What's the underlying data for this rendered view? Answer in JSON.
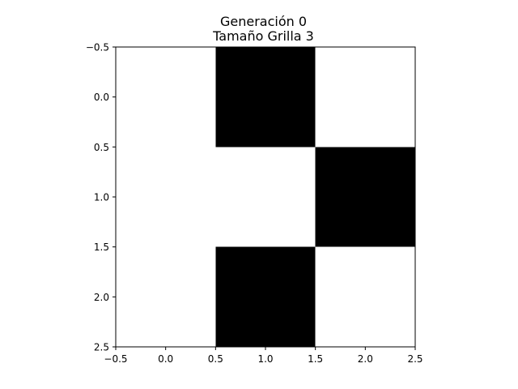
{
  "chart_data": {
    "type": "heatmap",
    "title": "Generación 0",
    "subtitle": "Tamaño Grilla 3",
    "xlabel": "",
    "ylabel": "",
    "xlim": [
      -0.5,
      2.5
    ],
    "ylim": [
      2.5,
      -0.5
    ],
    "y_inverted": true,
    "grid": false,
    "xticks": [
      {
        "value": -0.5,
        "label": "−0.5"
      },
      {
        "value": 0.0,
        "label": "0.0"
      },
      {
        "value": 0.5,
        "label": "0.5"
      },
      {
        "value": 1.0,
        "label": "1.0"
      },
      {
        "value": 1.5,
        "label": "1.5"
      },
      {
        "value": 2.0,
        "label": "2.0"
      },
      {
        "value": 2.5,
        "label": "2.5"
      }
    ],
    "yticks": [
      {
        "value": -0.5,
        "label": "−0.5"
      },
      {
        "value": 0.0,
        "label": "0.0"
      },
      {
        "value": 0.5,
        "label": "0.5"
      },
      {
        "value": 1.0,
        "label": "1.0"
      },
      {
        "value": 1.5,
        "label": "1.5"
      },
      {
        "value": 2.0,
        "label": "2.0"
      },
      {
        "value": 2.5,
        "label": "2.5"
      }
    ],
    "grid_values": [
      [
        0,
        1,
        0
      ],
      [
        0,
        0,
        1
      ],
      [
        0,
        1,
        0
      ]
    ],
    "colors": {
      "0": "#ffffff",
      "1": "#000000"
    }
  }
}
